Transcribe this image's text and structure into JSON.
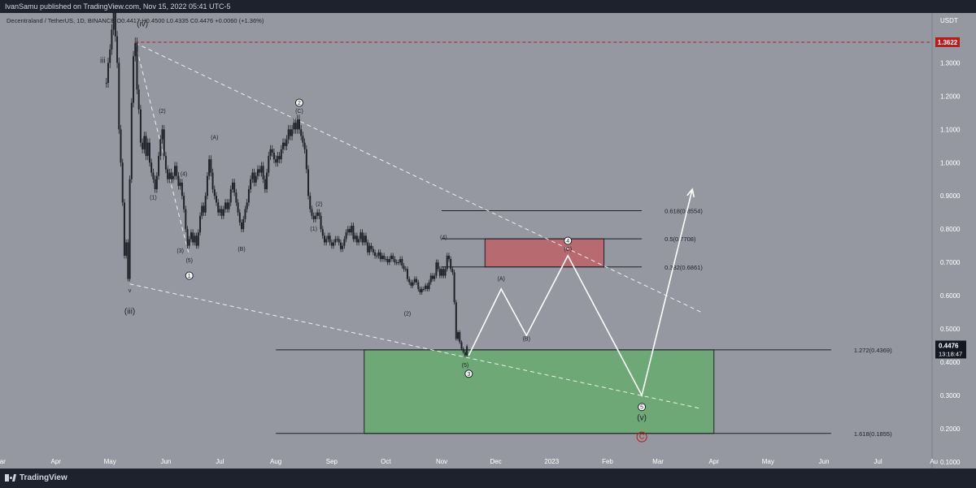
{
  "header": {
    "publisher": "IvanSamu published on TradingView.com, Nov 15, 2022 05:41 UTC-5"
  },
  "legend_line": "Decentraland / TetherUS, 1D, BINANCE O0.4417 H0.4500 L0.4335 C0.4476 +0.0060 (+1.36%)",
  "footer": {
    "brand": "TradingView"
  },
  "colors": {
    "chart_bg": "#9598a1",
    "panel_bg": "#1e222d",
    "candle": "#1f2227",
    "resistance_line": "#b71c1c",
    "price_tag": "#131722",
    "green_zone": "#6fa877",
    "red_zone": "#b86a71",
    "projection": "#ffffff",
    "circle_c": "#b71c1c"
  },
  "chart_data": {
    "type": "line",
    "title": "Decentraland / TetherUS, 1D, BINANCE",
    "currency_label": "USDT",
    "ohlc_readout": {
      "open": 0.4417,
      "high": 0.45,
      "low": 0.4335,
      "close": 0.4476,
      "change": 0.006,
      "change_pct": 1.36
    },
    "ylim": [
      0.08,
      1.45
    ],
    "y_ticks": [
      1.3,
      1.2,
      1.1,
      1.0,
      0.9,
      0.8,
      0.7,
      0.6,
      0.5,
      0.4,
      0.3,
      0.2,
      0.1
    ],
    "y_tick_labels": [
      "1.3000",
      "1.2000",
      "1.1000",
      "1.0000",
      "0.9000",
      "0.8000",
      "0.7000",
      "0.6000",
      "0.5000",
      "0.4000",
      "0.3000",
      "0.2000",
      "0.1000"
    ],
    "x_range": [
      "2022-03-01",
      "2023-07-31"
    ],
    "x_ticks": [
      {
        "date": "2022-03-01",
        "label": "Mar"
      },
      {
        "date": "2022-04-01",
        "label": "Apr"
      },
      {
        "date": "2022-05-01",
        "label": "May"
      },
      {
        "date": "2022-06-01",
        "label": "Jun"
      },
      {
        "date": "2022-07-01",
        "label": "Jul"
      },
      {
        "date": "2022-08-01",
        "label": "Aug"
      },
      {
        "date": "2022-09-01",
        "label": "Sep"
      },
      {
        "date": "2022-10-01",
        "label": "Oct"
      },
      {
        "date": "2022-11-01",
        "label": "Nov"
      },
      {
        "date": "2022-12-01",
        "label": "Dec"
      },
      {
        "date": "2023-01-01",
        "label": "2023"
      },
      {
        "date": "2023-02-01",
        "label": "Feb"
      },
      {
        "date": "2023-03-01",
        "label": "Mar"
      },
      {
        "date": "2023-04-01",
        "label": "Apr"
      },
      {
        "date": "2023-05-01",
        "label": "May"
      },
      {
        "date": "2023-06-01",
        "label": "Jun"
      },
      {
        "date": "2023-07-01",
        "label": "Jul"
      },
      {
        "date": "2023-08-01",
        "label": "Au"
      }
    ],
    "price_path": [
      [
        "2022-04-29",
        1.24
      ],
      [
        "2022-04-30",
        1.3
      ],
      [
        "2022-05-01",
        1.34
      ],
      [
        "2022-05-02",
        1.4
      ],
      [
        "2022-05-03",
        1.45
      ],
      [
        "2022-05-04",
        1.38
      ],
      [
        "2022-05-05",
        1.3
      ],
      [
        "2022-05-06",
        1.1
      ],
      [
        "2022-05-07",
        1.0
      ],
      [
        "2022-05-08",
        0.88
      ],
      [
        "2022-05-09",
        0.72
      ],
      [
        "2022-05-10",
        0.76
      ],
      [
        "2022-05-11",
        0.65
      ],
      [
        "2022-05-12",
        0.95
      ],
      [
        "2022-05-13",
        1.18
      ],
      [
        "2022-05-14",
        1.32
      ],
      [
        "2022-05-15",
        1.36
      ],
      [
        "2022-05-16",
        1.22
      ],
      [
        "2022-05-17",
        1.16
      ],
      [
        "2022-05-18",
        1.06
      ],
      [
        "2022-05-19",
        1.04
      ],
      [
        "2022-05-20",
        1.08
      ],
      [
        "2022-05-21",
        1.02
      ],
      [
        "2022-05-22",
        1.06
      ],
      [
        "2022-05-23",
        1.0
      ],
      [
        "2022-05-24",
        0.97
      ],
      [
        "2022-05-25",
        0.95
      ],
      [
        "2022-05-26",
        0.92
      ],
      [
        "2022-05-27",
        0.96
      ],
      [
        "2022-05-28",
        1.02
      ],
      [
        "2022-05-29",
        1.07
      ],
      [
        "2022-05-30",
        1.1
      ],
      [
        "2022-05-31",
        1.02
      ],
      [
        "2022-06-01",
        0.98
      ],
      [
        "2022-06-02",
        0.95
      ],
      [
        "2022-06-03",
        0.97
      ],
      [
        "2022-06-04",
        0.95
      ],
      [
        "2022-06-05",
        0.96
      ],
      [
        "2022-06-06",
        0.99
      ],
      [
        "2022-06-07",
        0.96
      ],
      [
        "2022-06-08",
        0.93
      ],
      [
        "2022-06-09",
        0.94
      ],
      [
        "2022-06-10",
        0.9
      ],
      [
        "2022-06-11",
        0.86
      ],
      [
        "2022-06-12",
        0.8
      ],
      [
        "2022-06-13",
        0.75
      ],
      [
        "2022-06-14",
        0.77
      ],
      [
        "2022-06-15",
        0.79
      ],
      [
        "2022-06-16",
        0.76
      ],
      [
        "2022-06-17",
        0.78
      ],
      [
        "2022-06-18",
        0.75
      ],
      [
        "2022-06-19",
        0.79
      ],
      [
        "2022-06-20",
        0.84
      ],
      [
        "2022-06-21",
        0.87
      ],
      [
        "2022-06-22",
        0.85
      ],
      [
        "2022-06-23",
        0.9
      ],
      [
        "2022-06-24",
        0.96
      ],
      [
        "2022-06-25",
        1.01
      ],
      [
        "2022-06-26",
        0.97
      ],
      [
        "2022-06-27",
        0.92
      ],
      [
        "2022-06-28",
        0.9
      ],
      [
        "2022-06-29",
        0.88
      ],
      [
        "2022-06-30",
        0.85
      ],
      [
        "2022-07-01",
        0.86
      ],
      [
        "2022-07-02",
        0.84
      ],
      [
        "2022-07-03",
        0.86
      ],
      [
        "2022-07-04",
        0.88
      ],
      [
        "2022-07-05",
        0.86
      ],
      [
        "2022-07-06",
        0.88
      ],
      [
        "2022-07-07",
        0.92
      ],
      [
        "2022-07-08",
        0.94
      ],
      [
        "2022-07-09",
        0.91
      ],
      [
        "2022-07-10",
        0.88
      ],
      [
        "2022-07-11",
        0.85
      ],
      [
        "2022-07-12",
        0.82
      ],
      [
        "2022-07-13",
        0.8
      ],
      [
        "2022-07-14",
        0.83
      ],
      [
        "2022-07-15",
        0.86
      ],
      [
        "2022-07-16",
        0.88
      ],
      [
        "2022-07-17",
        0.92
      ],
      [
        "2022-07-18",
        0.95
      ],
      [
        "2022-07-19",
        0.97
      ],
      [
        "2022-07-20",
        0.94
      ],
      [
        "2022-07-21",
        0.96
      ],
      [
        "2022-07-22",
        0.98
      ],
      [
        "2022-07-23",
        0.97
      ],
      [
        "2022-07-24",
        0.99
      ],
      [
        "2022-07-25",
        0.95
      ],
      [
        "2022-07-26",
        0.92
      ],
      [
        "2022-07-27",
        0.97
      ],
      [
        "2022-07-28",
        1.02
      ],
      [
        "2022-07-29",
        1.04
      ],
      [
        "2022-07-30",
        1.03
      ],
      [
        "2022-07-31",
        1.01
      ],
      [
        "2022-08-01",
        1.0
      ],
      [
        "2022-08-02",
        1.02
      ],
      [
        "2022-08-03",
        1.01
      ],
      [
        "2022-08-04",
        1.04
      ],
      [
        "2022-08-05",
        1.06
      ],
      [
        "2022-08-06",
        1.05
      ],
      [
        "2022-08-07",
        1.07
      ],
      [
        "2022-08-08",
        1.1
      ],
      [
        "2022-08-09",
        1.08
      ],
      [
        "2022-08-10",
        1.1
      ],
      [
        "2022-08-11",
        1.12
      ],
      [
        "2022-08-12",
        1.1
      ],
      [
        "2022-08-13",
        1.13
      ],
      [
        "2022-08-14",
        1.1
      ],
      [
        "2022-08-15",
        1.08
      ],
      [
        "2022-08-16",
        1.06
      ],
      [
        "2022-08-17",
        1.04
      ],
      [
        "2022-08-18",
        0.98
      ],
      [
        "2022-08-19",
        0.9
      ],
      [
        "2022-08-20",
        0.86
      ],
      [
        "2022-08-21",
        0.84
      ],
      [
        "2022-08-22",
        0.83
      ],
      [
        "2022-08-23",
        0.84
      ],
      [
        "2022-08-24",
        0.85
      ],
      [
        "2022-08-25",
        0.84
      ],
      [
        "2022-08-26",
        0.8
      ],
      [
        "2022-08-27",
        0.78
      ],
      [
        "2022-08-28",
        0.76
      ],
      [
        "2022-08-29",
        0.77
      ],
      [
        "2022-08-30",
        0.78
      ],
      [
        "2022-08-31",
        0.76
      ],
      [
        "2022-09-01",
        0.75
      ],
      [
        "2022-09-02",
        0.76
      ],
      [
        "2022-09-03",
        0.77
      ],
      [
        "2022-09-04",
        0.77
      ],
      [
        "2022-09-05",
        0.76
      ],
      [
        "2022-09-06",
        0.74
      ],
      [
        "2022-09-07",
        0.75
      ],
      [
        "2022-09-08",
        0.77
      ],
      [
        "2022-09-09",
        0.79
      ],
      [
        "2022-09-10",
        0.8
      ],
      [
        "2022-09-11",
        0.79
      ],
      [
        "2022-09-12",
        0.81
      ],
      [
        "2022-09-13",
        0.77
      ],
      [
        "2022-09-14",
        0.78
      ],
      [
        "2022-09-15",
        0.76
      ],
      [
        "2022-09-16",
        0.77
      ],
      [
        "2022-09-17",
        0.79
      ],
      [
        "2022-09-18",
        0.76
      ],
      [
        "2022-09-19",
        0.78
      ],
      [
        "2022-09-20",
        0.76
      ],
      [
        "2022-09-21",
        0.73
      ],
      [
        "2022-09-22",
        0.75
      ],
      [
        "2022-09-23",
        0.74
      ],
      [
        "2022-09-24",
        0.73
      ],
      [
        "2022-09-25",
        0.72
      ],
      [
        "2022-09-26",
        0.72
      ],
      [
        "2022-09-27",
        0.73
      ],
      [
        "2022-09-28",
        0.71
      ],
      [
        "2022-09-29",
        0.72
      ],
      [
        "2022-09-30",
        0.71
      ],
      [
        "2022-10-01",
        0.71
      ],
      [
        "2022-10-02",
        0.7
      ],
      [
        "2022-10-03",
        0.71
      ],
      [
        "2022-10-04",
        0.72
      ],
      [
        "2022-10-05",
        0.71
      ],
      [
        "2022-10-06",
        0.7
      ],
      [
        "2022-10-07",
        0.7
      ],
      [
        "2022-10-08",
        0.7
      ],
      [
        "2022-10-09",
        0.71
      ],
      [
        "2022-10-10",
        0.69
      ],
      [
        "2022-10-11",
        0.68
      ],
      [
        "2022-10-12",
        0.68
      ],
      [
        "2022-10-13",
        0.65
      ],
      [
        "2022-10-14",
        0.64
      ],
      [
        "2022-10-15",
        0.63
      ],
      [
        "2022-10-16",
        0.64
      ],
      [
        "2022-10-17",
        0.65
      ],
      [
        "2022-10-18",
        0.64
      ],
      [
        "2022-10-19",
        0.62
      ],
      [
        "2022-10-20",
        0.61
      ],
      [
        "2022-10-21",
        0.62
      ],
      [
        "2022-10-22",
        0.62
      ],
      [
        "2022-10-23",
        0.63
      ],
      [
        "2022-10-24",
        0.62
      ],
      [
        "2022-10-25",
        0.64
      ],
      [
        "2022-10-26",
        0.66
      ],
      [
        "2022-10-27",
        0.65
      ],
      [
        "2022-10-28",
        0.66
      ],
      [
        "2022-10-29",
        0.7
      ],
      [
        "2022-10-30",
        0.68
      ],
      [
        "2022-10-31",
        0.66
      ],
      [
        "2022-11-01",
        0.68
      ],
      [
        "2022-11-02",
        0.66
      ],
      [
        "2022-11-03",
        0.68
      ],
      [
        "2022-11-04",
        0.72
      ],
      [
        "2022-11-05",
        0.71
      ],
      [
        "2022-11-06",
        0.68
      ],
      [
        "2022-11-07",
        0.67
      ],
      [
        "2022-11-08",
        0.58
      ],
      [
        "2022-11-09",
        0.47
      ],
      [
        "2022-11-10",
        0.49
      ],
      [
        "2022-11-11",
        0.46
      ],
      [
        "2022-11-12",
        0.44
      ],
      [
        "2022-11-13",
        0.43
      ],
      [
        "2022-11-14",
        0.42
      ],
      [
        "2022-11-15",
        0.4476
      ]
    ],
    "projection_path": [
      [
        "2022-11-16",
        0.42
      ],
      [
        "2022-12-04",
        0.62
      ],
      [
        "2022-12-18",
        0.48
      ],
      [
        "2023-01-10",
        0.72
      ],
      [
        "2023-02-20",
        0.3
      ],
      [
        "2023-03-20",
        0.92
      ]
    ],
    "resistance_level": {
      "value": 1.3622,
      "label": "1.3622"
    },
    "current_price": {
      "value": 0.4476,
      "label": "0.4476",
      "countdown": "13:18:47"
    },
    "fib_levels": [
      {
        "label": "0.618(0.8554)",
        "value": 0.8554,
        "from": "2022-11-01",
        "to": "2023-02-20"
      },
      {
        "label": "0.5(0.7708)",
        "value": 0.7708,
        "from": "2022-11-01",
        "to": "2023-02-20"
      },
      {
        "label": "0.382(0.6861)",
        "value": 0.6861,
        "from": "2022-11-01",
        "to": "2023-02-20"
      },
      {
        "label": "1.272(0.4369)",
        "value": 0.4369,
        "from": "2022-08-01",
        "to": "2023-06-05"
      },
      {
        "label": "1.618(0.1855)",
        "value": 0.1855,
        "from": "2022-08-01",
        "to": "2023-06-05"
      }
    ],
    "zones": [
      {
        "name": "red",
        "from": "2022-11-25",
        "to": "2023-01-30",
        "top": 0.7708,
        "bottom": 0.6861
      },
      {
        "name": "green",
        "from": "2022-09-19",
        "to": "2023-04-01",
        "top": 0.4369,
        "bottom": 0.1855
      }
    ],
    "trendlines": [
      {
        "from": [
          "2022-05-15",
          1.36
        ],
        "to": [
          "2023-03-25",
          0.55
        ]
      },
      {
        "from": [
          "2022-05-12",
          0.635
        ],
        "to": [
          "2023-03-25",
          0.26
        ]
      },
      {
        "from": [
          "2022-05-15",
          1.36
        ],
        "to": [
          "2022-06-14",
          0.72
        ]
      }
    ],
    "wave_labels": [
      {
        "text": "iii",
        "x": "2022-04-27",
        "y": 1.3
      },
      {
        "text": "(iv)",
        "x": "2022-05-19",
        "y": 1.41
      },
      {
        "text": "v",
        "x": "2022-05-12",
        "y": 0.61
      },
      {
        "text": "(iii)",
        "x": "2022-05-12",
        "y": 0.545
      },
      {
        "text": "(2)",
        "x": "2022-05-30",
        "y": 1.15
      },
      {
        "text": "(1)",
        "x": "2022-05-25",
        "y": 0.89
      },
      {
        "text": "(4)",
        "x": "2022-06-11",
        "y": 0.96
      },
      {
        "text": "(3)",
        "x": "2022-06-09",
        "y": 0.73
      },
      {
        "text": "(5)",
        "x": "2022-06-14",
        "y": 0.7
      },
      {
        "text": "(A)",
        "x": "2022-06-28",
        "y": 1.07
      },
      {
        "text": "(B)",
        "x": "2022-07-13",
        "y": 0.735
      },
      {
        "text": "(C)",
        "x": "2022-08-14",
        "y": 1.15
      },
      {
        "text": "(2)",
        "x": "2022-08-25",
        "y": 0.87
      },
      {
        "text": "(1)",
        "x": "2022-08-22",
        "y": 0.795
      },
      {
        "text": "(2)",
        "x": "2022-10-13",
        "y": 0.54
      },
      {
        "text": "(4)",
        "x": "2022-11-02",
        "y": 0.77
      },
      {
        "text": "(5)",
        "x": "2022-11-14",
        "y": 0.385
      },
      {
        "text": "(A)",
        "x": "2022-12-04",
        "y": 0.645
      },
      {
        "text": "(B)",
        "x": "2022-12-18",
        "y": 0.465
      },
      {
        "text": "(C)",
        "x": "2023-01-10",
        "y": 0.735
      },
      {
        "text": "(v)",
        "x": "2023-02-20",
        "y": 0.225
      }
    ],
    "circled_labels": [
      {
        "text": "1",
        "x": "2022-06-14",
        "y": 0.66
      },
      {
        "text": "2",
        "x": "2022-08-14",
        "y": 1.18
      },
      {
        "text": "3",
        "x": "2022-11-16",
        "y": 0.365
      },
      {
        "text": "4",
        "x": "2023-01-10",
        "y": 0.765
      },
      {
        "text": "5",
        "x": "2023-02-20",
        "y": 0.265
      },
      {
        "text": "C",
        "x": "2023-02-20",
        "y": 0.175,
        "color": "#b71c1c"
      }
    ]
  }
}
